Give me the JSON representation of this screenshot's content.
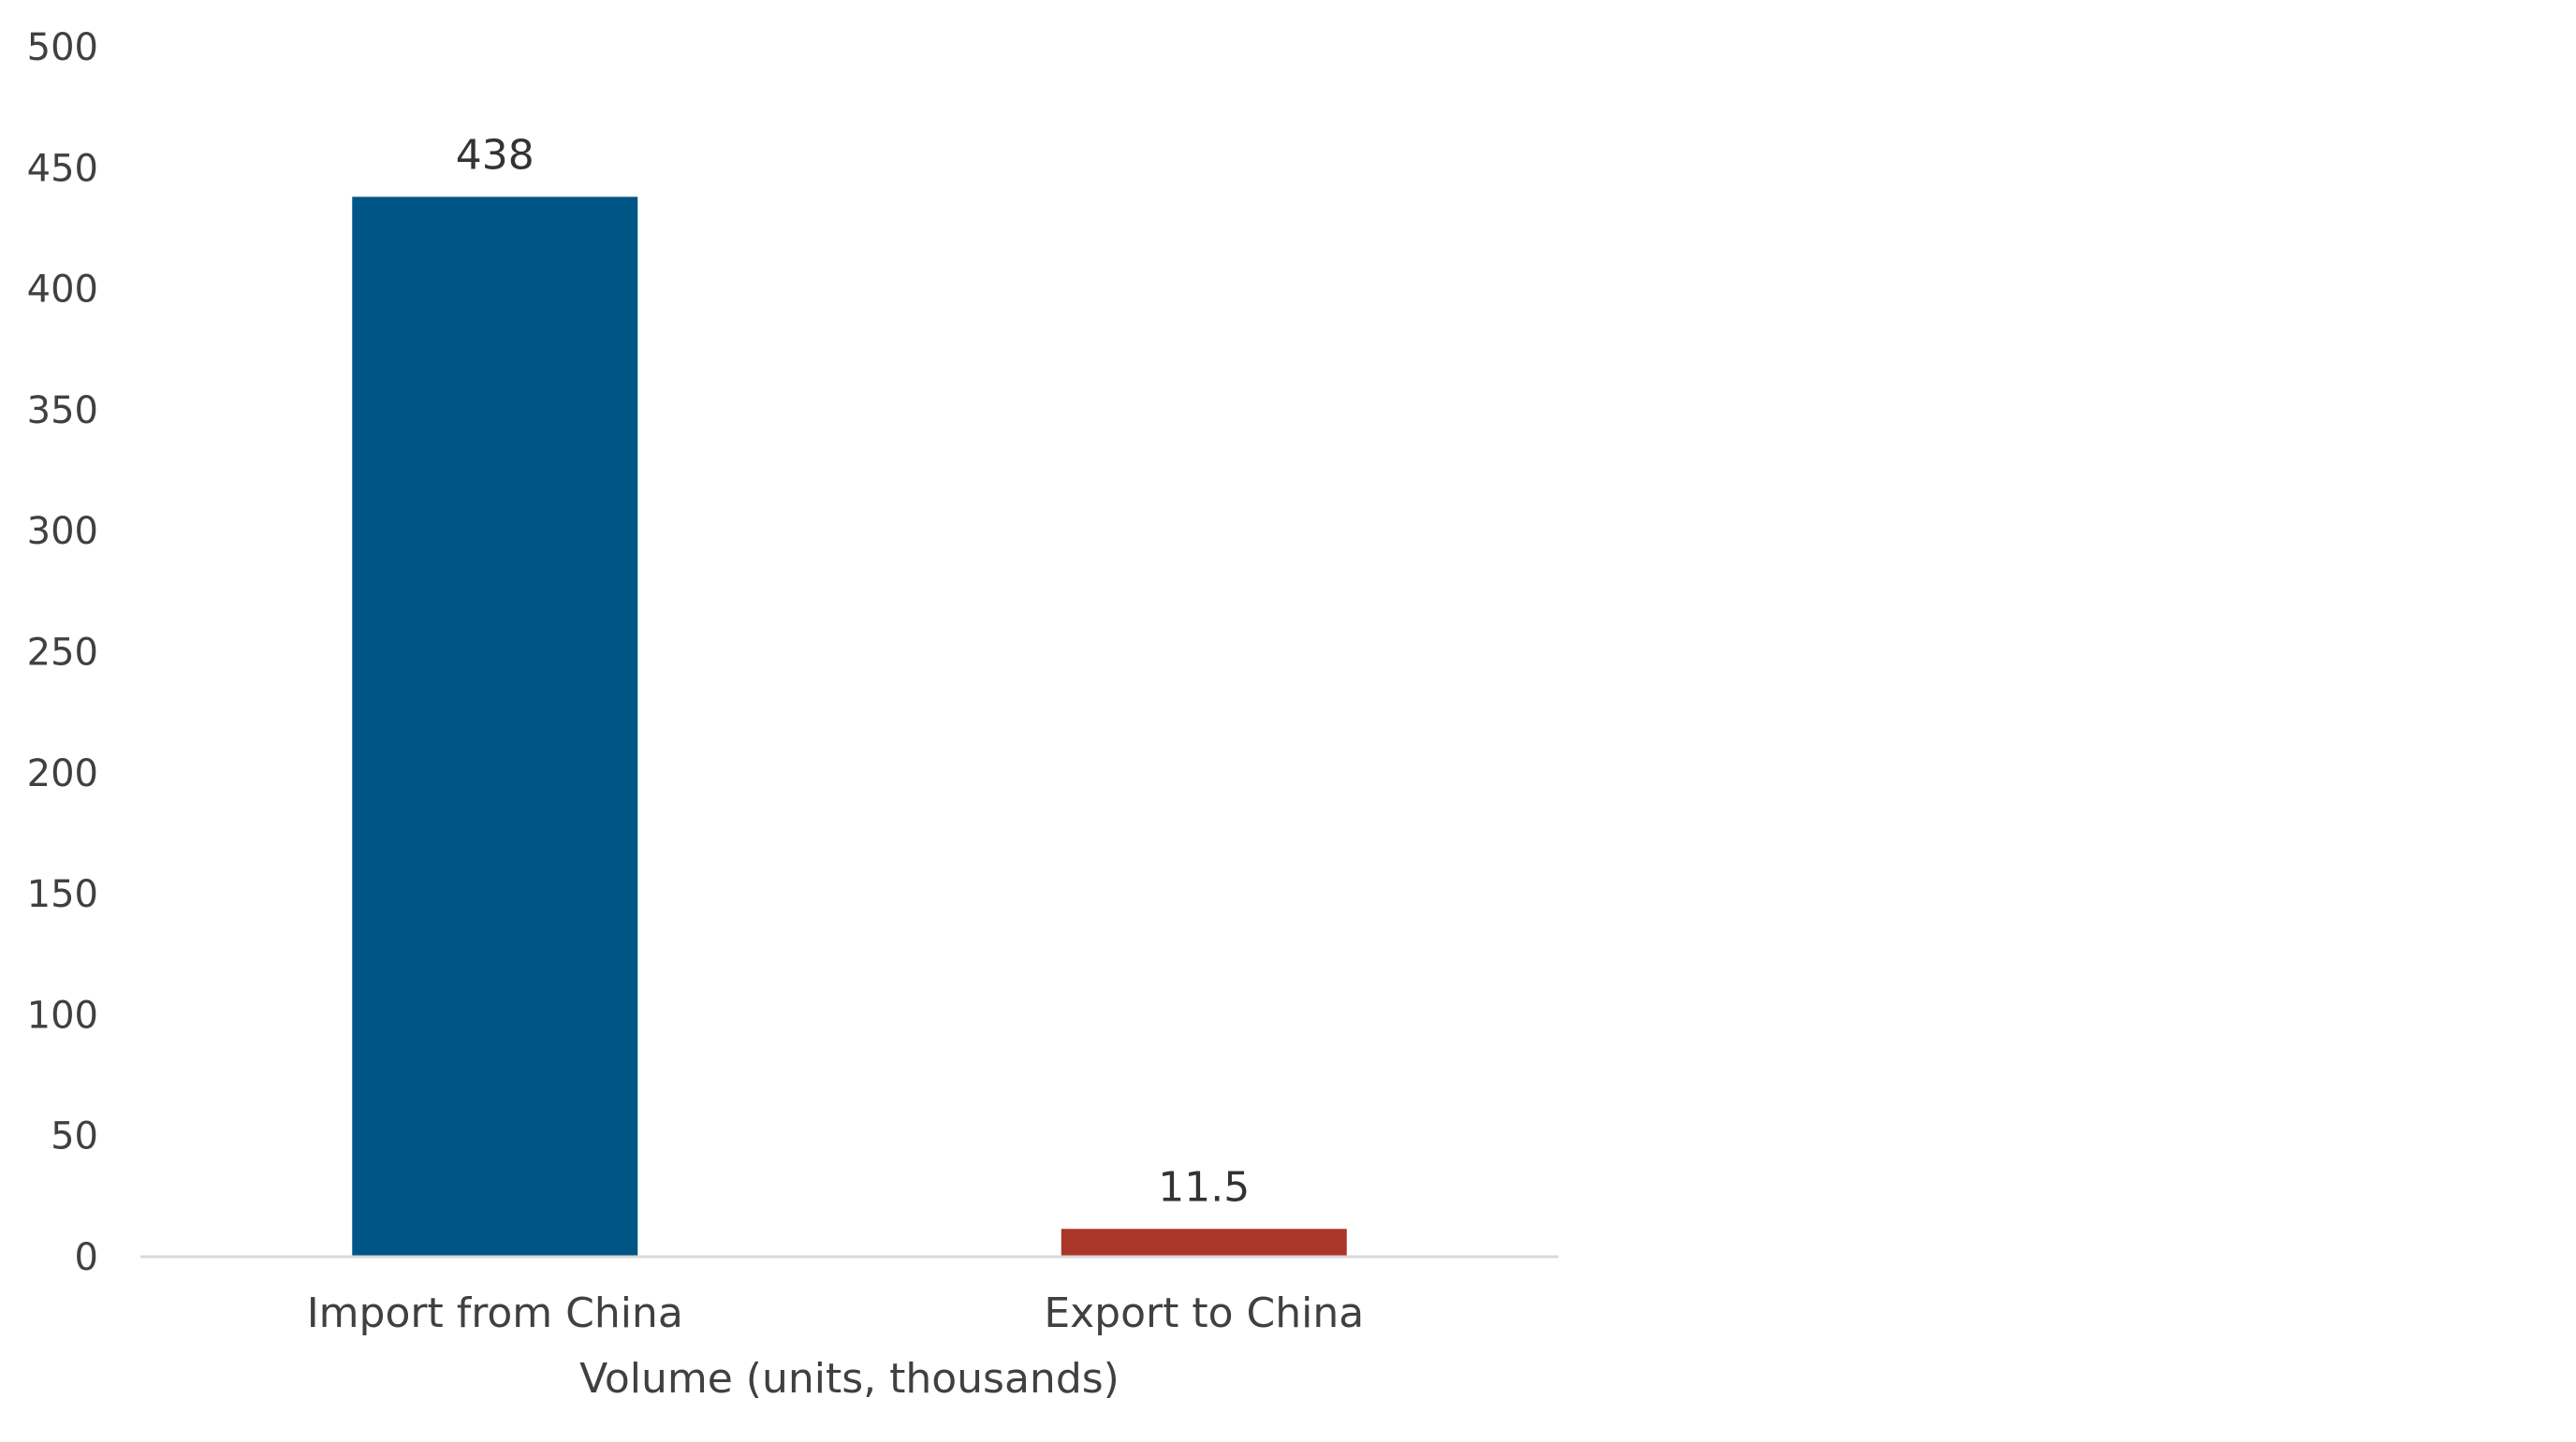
{
  "chart_data": {
    "type": "bar",
    "categories": [
      "Import from China",
      "Export to China"
    ],
    "values": [
      438,
      11.5
    ],
    "data_labels": [
      "438",
      "11.5"
    ],
    "colors": [
      "#005587",
      "#A93628"
    ],
    "title": "",
    "xlabel": "Volume (units, thousands)",
    "ylabel": "",
    "ylim": [
      0,
      500
    ],
    "yticks": [
      0,
      50,
      100,
      150,
      200,
      250,
      300,
      350,
      400,
      450,
      500
    ],
    "grid": false,
    "axis_color": "#D9D9D9"
  }
}
